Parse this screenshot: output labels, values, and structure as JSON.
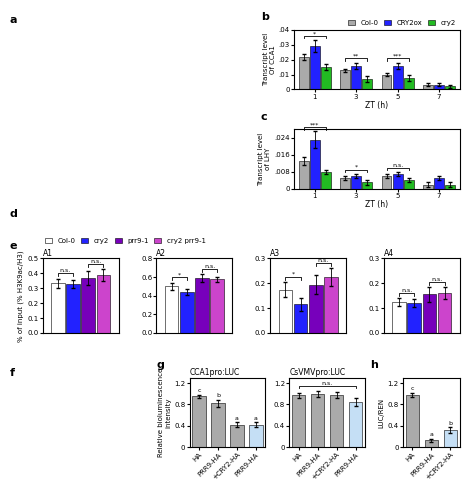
{
  "chart_data": [
    {
      "type": "empty",
      "panel": "a"
    },
    {
      "type": "bar",
      "panel": "b",
      "xlabel": "ZT (h)",
      "ylabel": "Transcript level\nOf CCA1",
      "categories": [
        "1",
        "3",
        "5",
        "7"
      ],
      "series": [
        {
          "name": "Col-0",
          "color": "#aaaaaa",
          "values": [
            0.022,
            0.013,
            0.01,
            0.003
          ],
          "errors": [
            0.002,
            0.001,
            0.001,
            0.001
          ]
        },
        {
          "name": "CRY2ox",
          "color": "#2222ff",
          "values": [
            0.029,
            0.016,
            0.016,
            0.003
          ],
          "errors": [
            0.004,
            0.002,
            0.002,
            0.001
          ]
        },
        {
          "name": "cry2",
          "color": "#22bb22",
          "values": [
            0.015,
            0.007,
            0.008,
            0.002
          ],
          "errors": [
            0.002,
            0.002,
            0.002,
            0.001
          ]
        }
      ],
      "ylim": [
        0,
        0.04
      ],
      "yticks": [
        0,
        {
          "value": 0.01,
          "label": ".01"
        },
        {
          "value": 0.02,
          "label": ".02"
        },
        {
          "value": 0.03,
          "label": ".03"
        },
        {
          "value": 0.04,
          "label": ".04"
        }
      ],
      "legend": "top",
      "annotations": [
        {
          "text": "*",
          "at": "1"
        },
        {
          "text": "**",
          "at": "3"
        },
        {
          "text": "***",
          "at": "5"
        }
      ]
    },
    {
      "type": "bar",
      "panel": "c",
      "xlabel": "ZT (h)",
      "ylabel": "Transcript level\nof LHY",
      "categories": [
        "1",
        "3",
        "5",
        "7"
      ],
      "series": [
        {
          "name": "Col-0",
          "color": "#aaaaaa",
          "values": [
            0.013,
            0.005,
            0.006,
            0.002
          ],
          "errors": [
            0.002,
            0.001,
            0.001,
            0.001
          ]
        },
        {
          "name": "CRY2ox",
          "color": "#2222ff",
          "values": [
            0.023,
            0.006,
            0.007,
            0.005
          ],
          "errors": [
            0.004,
            0.001,
            0.001,
            0.001
          ]
        },
        {
          "name": "cry2",
          "color": "#22bb22",
          "values": [
            0.008,
            0.003,
            0.004,
            0.002
          ],
          "errors": [
            0.001,
            0.001,
            0.001,
            0.001
          ]
        }
      ],
      "ylim": [
        0,
        0.028
      ],
      "yticks": [
        0,
        {
          "value": 0.008,
          "label": ".008"
        },
        {
          "value": 0.016,
          "label": ".016"
        },
        {
          "value": 0.024,
          "label": ".024"
        }
      ],
      "annotations": [
        {
          "text": "***",
          "at": "1"
        },
        {
          "text": "*",
          "at": "3"
        },
        {
          "text": "n.s.",
          "at": "5"
        }
      ]
    },
    {
      "type": "empty",
      "panel": "d"
    },
    {
      "type": "bar",
      "panel": "e",
      "title": "A1",
      "ylabel": "% of input (% H3K9ac/H3)",
      "categories": [
        null
      ],
      "series": [
        {
          "name": "Col-0",
          "color": "#ffffff",
          "values": [
            0.335
          ],
          "errors": [
            0.03
          ]
        },
        {
          "name": "cry2",
          "color": "#2222ff",
          "values": [
            0.33
          ],
          "errors": [
            0.025
          ]
        },
        {
          "name": "prr9-1",
          "color": "#7700bb",
          "values": [
            0.37
          ],
          "errors": [
            0.045
          ]
        },
        {
          "name": "cry2 prr9-1",
          "color": "#cc44cc",
          "values": [
            0.39
          ],
          "errors": [
            0.04
          ]
        }
      ],
      "ylim": [
        0.0,
        0.5
      ],
      "yticks": [
        0.0,
        0.1,
        0.2,
        0.3,
        0.4,
        0.5
      ],
      "legend": "top",
      "annotations": [
        {
          "text": "n.s.",
          "span": [
            "Col-0",
            "cry2"
          ]
        },
        {
          "text": "n.s.",
          "span": [
            "prr9-1",
            "cry2 prr9-1"
          ]
        }
      ]
    },
    {
      "type": "bar",
      "title": "A2",
      "categories": [
        null
      ],
      "series": [
        {
          "name": "Col-0",
          "color": "#ffffff",
          "values": [
            0.5
          ],
          "errors": [
            0.04
          ]
        },
        {
          "name": "cry2",
          "color": "#2222ff",
          "values": [
            0.44
          ],
          "errors": [
            0.03
          ]
        },
        {
          "name": "prr9-1",
          "color": "#7700bb",
          "values": [
            0.59
          ],
          "errors": [
            0.04
          ]
        },
        {
          "name": "cry2 prr9-1",
          "color": "#cc44cc",
          "values": [
            0.575
          ],
          "errors": [
            0.03
          ]
        }
      ],
      "ylim": [
        0.0,
        0.8
      ],
      "yticks": [
        0.0,
        0.2,
        0.4,
        0.6,
        0.8
      ],
      "annotations": [
        {
          "text": "*",
          "span": [
            "Col-0",
            "cry2"
          ]
        },
        {
          "text": "n.s.",
          "span": [
            "prr9-1",
            "cry2 prr9-1"
          ]
        }
      ]
    },
    {
      "type": "bar",
      "title": "A3",
      "categories": [
        null
      ],
      "series": [
        {
          "name": "Col-0",
          "color": "#ffffff",
          "values": [
            0.175
          ],
          "errors": [
            0.03
          ]
        },
        {
          "name": "cry2",
          "color": "#2222ff",
          "values": [
            0.115
          ],
          "errors": [
            0.025
          ]
        },
        {
          "name": "prr9-1",
          "color": "#7700bb",
          "values": [
            0.195
          ],
          "errors": [
            0.04
          ]
        },
        {
          "name": "cry2 prr9-1",
          "color": "#cc44cc",
          "values": [
            0.225
          ],
          "errors": [
            0.035
          ]
        }
      ],
      "ylim": [
        0.0,
        0.3
      ],
      "yticks": [
        0.0,
        0.1,
        0.2,
        0.3
      ],
      "annotations": [
        {
          "text": "*",
          "span": [
            "Col-0",
            "cry2"
          ]
        },
        {
          "text": "n.s.",
          "span": [
            "prr9-1",
            "cry2 prr9-1"
          ]
        }
      ]
    },
    {
      "type": "bar",
      "title": "A4",
      "categories": [
        null
      ],
      "series": [
        {
          "name": "Col-0",
          "color": "#ffffff",
          "values": [
            0.125
          ],
          "errors": [
            0.015
          ]
        },
        {
          "name": "cry2",
          "color": "#2222ff",
          "values": [
            0.12
          ],
          "errors": [
            0.015
          ]
        },
        {
          "name": "prr9-1",
          "color": "#7700bb",
          "values": [
            0.155
          ],
          "errors": [
            0.03
          ]
        },
        {
          "name": "cry2 prr9-1",
          "color": "#cc44cc",
          "values": [
            0.16
          ],
          "errors": [
            0.025
          ]
        }
      ],
      "ylim": [
        0.0,
        0.3
      ],
      "yticks": [
        0.0,
        0.1,
        0.2,
        0.3
      ],
      "annotations": [
        {
          "text": "n.s.",
          "span": [
            "Col-0",
            "cry2"
          ]
        },
        {
          "text": "n.s.",
          "span": [
            "prr9-1",
            "cry2 prr9-1"
          ]
        }
      ]
    },
    {
      "type": "empty",
      "panel": "f"
    },
    {
      "type": "bar",
      "panel": "g",
      "title": "CCA1pro:LUC",
      "ylabel": "Relative bioluminescence\nintensity",
      "categories": [
        "HA",
        "PRR9-HA",
        "+CRY2-HA",
        "PRR9-HA"
      ],
      "values": [
        0.95,
        0.82,
        0.42,
        0.42
      ],
      "errors": [
        0.03,
        0.07,
        0.05,
        0.05
      ],
      "colors": [
        "#aaaaaa",
        "#aaaaaa",
        "#aaaaaa",
        "#c5dff5"
      ],
      "ylim": [
        0,
        1.3
      ],
      "yticks": [
        0,
        0.4,
        0.8,
        1.2
      ],
      "annotations": [
        {
          "text": "c",
          "at": 0
        },
        {
          "text": "b",
          "at": 1
        },
        {
          "text": "a",
          "at": 2
        },
        {
          "text": "a",
          "at": 3
        }
      ]
    },
    {
      "type": "bar",
      "title": "CsVMVpro:LUC",
      "categories": [
        "HA",
        "PRR9-HA",
        "+CRY2-HA",
        "PRR9-HA"
      ],
      "values": [
        0.97,
        1.0,
        0.98,
        0.85
      ],
      "errors": [
        0.04,
        0.06,
        0.06,
        0.07
      ],
      "colors": [
        "#aaaaaa",
        "#aaaaaa",
        "#aaaaaa",
        "#c5dff5"
      ],
      "ylim": [
        0,
        1.3
      ],
      "yticks": [
        0,
        0.4,
        0.8,
        1.2
      ],
      "annotations": [
        {
          "text": "n.s.",
          "span": [
            0,
            3
          ]
        }
      ]
    },
    {
      "type": "bar",
      "panel": "h",
      "ylabel": "LUC/REN",
      "categories": [
        "HA",
        "PRR9-HA",
        "+CRY2-HA"
      ],
      "values": [
        0.98,
        0.13,
        0.32
      ],
      "errors": [
        0.04,
        0.03,
        0.05
      ],
      "colors": [
        "#aaaaaa",
        "#aaaaaa",
        "#c5dff5"
      ],
      "ylim": [
        0,
        1.3
      ],
      "yticks": [
        0,
        0.4,
        0.8,
        1.2
      ],
      "annotations": [
        {
          "text": "c",
          "at": 0
        },
        {
          "text": "a",
          "at": 1
        },
        {
          "text": "b",
          "at": 2
        }
      ]
    }
  ]
}
